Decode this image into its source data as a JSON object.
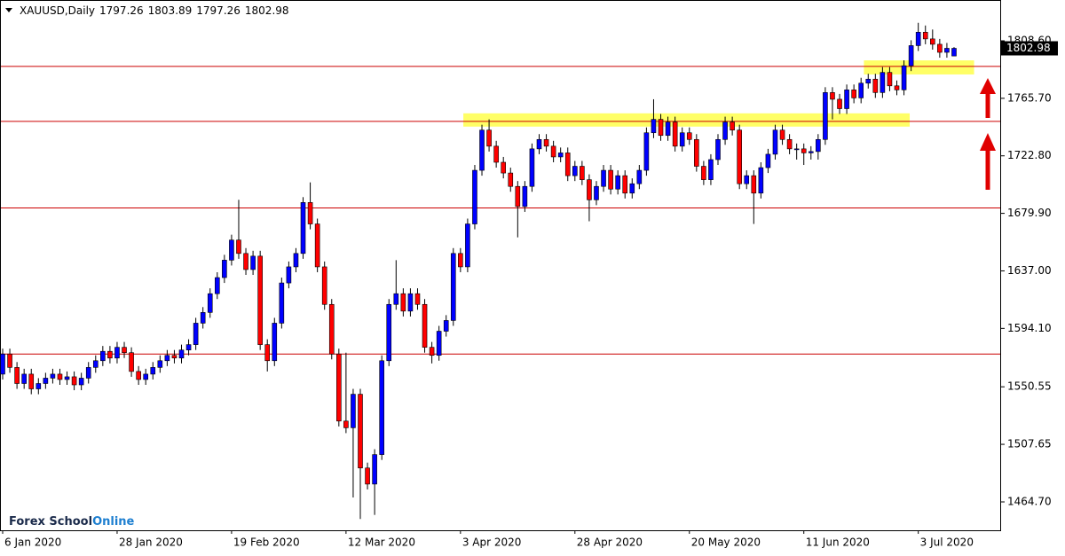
{
  "chart_data": {
    "type": "candlestick",
    "title": "XAUUSD,Daily",
    "categories": [
      "6 Jan 2020",
      null,
      null,
      null,
      null,
      null,
      null,
      null,
      null,
      null,
      null,
      null,
      null,
      null,
      null,
      null,
      "28 Jan 2020",
      null,
      null,
      null,
      null,
      null,
      null,
      null,
      null,
      null,
      null,
      null,
      null,
      null,
      null,
      null,
      "19 Feb 2020",
      null,
      null,
      null,
      null,
      null,
      null,
      null,
      null,
      null,
      null,
      null,
      null,
      null,
      null,
      null,
      "12 Mar 2020",
      null,
      null,
      null,
      null,
      null,
      null,
      null,
      null,
      null,
      null,
      null,
      null,
      null,
      null,
      null,
      "3 Apr 2020",
      null,
      null,
      null,
      null,
      null,
      null,
      null,
      null,
      null,
      null,
      null,
      null,
      null,
      null,
      null,
      "28 Apr 2020",
      null,
      null,
      null,
      null,
      null,
      null,
      null,
      null,
      null,
      null,
      null,
      null,
      null,
      null,
      null,
      "20 May 2020",
      null,
      null,
      null,
      null,
      null,
      null,
      null,
      null,
      null,
      null,
      null,
      null,
      null,
      null,
      null,
      "11 Jun 2020",
      null,
      null,
      null,
      null,
      null,
      null,
      null,
      null,
      null,
      null,
      null,
      null,
      null,
      null,
      null,
      "3 Jul 2020",
      null,
      null,
      null,
      null,
      null
    ],
    "open": [
      1560,
      1575,
      1565,
      1553,
      1560,
      1549,
      1553,
      1557,
      1560,
      1556,
      1558,
      1552,
      1557,
      1565,
      1570,
      1577,
      1572,
      1580,
      1576,
      1562,
      1556,
      1560,
      1565,
      1570,
      1574,
      1572,
      1578,
      1582,
      1598,
      1606,
      1620,
      1632,
      1645,
      1660,
      1650,
      1638,
      1648,
      1582,
      1570,
      1598,
      1628,
      1640,
      1650,
      1688,
      1672,
      1640,
      1612,
      1575,
      1525,
      1520,
      1545,
      1490,
      1478,
      1500,
      1570,
      1612,
      1620,
      1607,
      1620,
      1612,
      1580,
      1574,
      1592,
      1600,
      1650,
      1640,
      1672,
      1712,
      1742,
      1730,
      1718,
      1710,
      1700,
      1685,
      1700,
      1728,
      1735,
      1730,
      1722,
      1725,
      1708,
      1715,
      1705,
      1690,
      1700,
      1712,
      1698,
      1708,
      1695,
      1702,
      1712,
      1740,
      1750,
      1738,
      1748,
      1730,
      1740,
      1735,
      1715,
      1705,
      1720,
      1735,
      1748,
      1742,
      1702,
      1708,
      1695,
      1714,
      1724,
      1742,
      1735,
      1728,
      1728,
      1725,
      1726,
      1735,
      1770,
      1765,
      1758,
      1772,
      1766,
      1777,
      1780,
      1770,
      1785,
      1775,
      1772,
      1790,
      1805,
      1815,
      1810,
      1806,
      1800,
      1797.26
    ],
    "high": [
      1579,
      1579,
      1569,
      1564,
      1564,
      1557,
      1561,
      1564,
      1564,
      1562,
      1562,
      1561,
      1569,
      1574,
      1581,
      1581,
      1584,
      1584,
      1580,
      1566,
      1564,
      1569,
      1574,
      1578,
      1578,
      1582,
      1586,
      1602,
      1610,
      1624,
      1636,
      1649,
      1664,
      1690,
      1654,
      1652,
      1652,
      1586,
      1602,
      1632,
      1644,
      1654,
      1692,
      1703,
      1676,
      1644,
      1616,
      1579,
      1576,
      1549,
      1549,
      1494,
      1504,
      1574,
      1616,
      1645,
      1624,
      1624,
      1624,
      1616,
      1584,
      1596,
      1604,
      1654,
      1654,
      1676,
      1716,
      1746,
      1750,
      1734,
      1722,
      1714,
      1704,
      1704,
      1732,
      1739,
      1739,
      1734,
      1729,
      1729,
      1719,
      1719,
      1709,
      1704,
      1716,
      1716,
      1712,
      1712,
      1706,
      1716,
      1744,
      1765,
      1754,
      1752,
      1752,
      1744,
      1744,
      1739,
      1719,
      1724,
      1739,
      1752,
      1752,
      1746,
      1712,
      1712,
      1718,
      1728,
      1746,
      1746,
      1739,
      1732,
      1732,
      1730,
      1739,
      1774,
      1774,
      1769,
      1776,
      1776,
      1781,
      1784,
      1784,
      1789,
      1789,
      1779,
      1794,
      1809,
      1822,
      1820,
      1817,
      1810,
      1807,
      1803.89
    ],
    "low": [
      1556,
      1561,
      1549,
      1549,
      1545,
      1545,
      1549,
      1553,
      1552,
      1552,
      1548,
      1548,
      1553,
      1561,
      1566,
      1568,
      1568,
      1572,
      1558,
      1552,
      1552,
      1556,
      1561,
      1566,
      1568,
      1568,
      1574,
      1578,
      1594,
      1602,
      1616,
      1628,
      1641,
      1646,
      1634,
      1634,
      1578,
      1562,
      1566,
      1594,
      1624,
      1636,
      1646,
      1668,
      1636,
      1608,
      1571,
      1521,
      1516,
      1468,
      1452,
      1474,
      1455,
      1496,
      1566,
      1608,
      1603,
      1603,
      1608,
      1576,
      1568,
      1570,
      1588,
      1596,
      1636,
      1636,
      1668,
      1708,
      1726,
      1714,
      1706,
      1696,
      1662,
      1681,
      1696,
      1724,
      1726,
      1718,
      1718,
      1704,
      1704,
      1701,
      1674,
      1686,
      1696,
      1694,
      1694,
      1691,
      1691,
      1698,
      1708,
      1736,
      1734,
      1734,
      1726,
      1726,
      1731,
      1711,
      1701,
      1701,
      1716,
      1731,
      1738,
      1698,
      1698,
      1672,
      1691,
      1710,
      1720,
      1731,
      1724,
      1720,
      1716,
      1720,
      1720,
      1731,
      1750,
      1754,
      1754,
      1762,
      1762,
      1773,
      1766,
      1766,
      1771,
      1768,
      1768,
      1786,
      1801,
      1806,
      1802,
      1796,
      1796,
      1797.26
    ],
    "close": [
      1575,
      1565,
      1553,
      1560,
      1549,
      1553,
      1557,
      1560,
      1556,
      1558,
      1552,
      1557,
      1565,
      1570,
      1577,
      1572,
      1580,
      1576,
      1562,
      1556,
      1560,
      1565,
      1570,
      1574,
      1572,
      1578,
      1582,
      1598,
      1606,
      1620,
      1632,
      1645,
      1660,
      1650,
      1638,
      1648,
      1582,
      1570,
      1598,
      1628,
      1640,
      1650,
      1688,
      1672,
      1640,
      1612,
      1575,
      1525,
      1520,
      1545,
      1490,
      1478,
      1500,
      1570,
      1612,
      1620,
      1607,
      1620,
      1612,
      1580,
      1574,
      1592,
      1600,
      1650,
      1640,
      1672,
      1712,
      1742,
      1730,
      1718,
      1710,
      1700,
      1685,
      1700,
      1728,
      1735,
      1730,
      1722,
      1725,
      1708,
      1715,
      1705,
      1690,
      1700,
      1712,
      1698,
      1708,
      1695,
      1702,
      1712,
      1740,
      1750,
      1738,
      1748,
      1730,
      1740,
      1735,
      1715,
      1705,
      1720,
      1735,
      1748,
      1742,
      1702,
      1708,
      1695,
      1714,
      1724,
      1742,
      1735,
      1728,
      1728,
      1725,
      1726,
      1735,
      1770,
      1765,
      1758,
      1772,
      1766,
      1777,
      1780,
      1770,
      1785,
      1775,
      1772,
      1790,
      1805,
      1815,
      1810,
      1806,
      1800,
      1803,
      1802.98
    ],
    "up_color": "#0000ff",
    "down_color": "#ff0000",
    "ylim": [
      1443.54,
      1839.02
    ],
    "yticks": [
      {
        "value": 1464.7,
        "label": "1464.70"
      },
      1507.65,
      1550.55,
      {
        "value": 1594.1,
        "label": "1594.10"
      },
      {
        "value": 1637,
        "label": "1637.00"
      },
      {
        "value": 1679.9,
        "label": "1679.90"
      },
      {
        "value": 1722.8,
        "label": "1722.80"
      },
      {
        "value": 1765.7,
        "label": "1765.70"
      },
      {
        "value": 1808.6,
        "label": "1808.60"
      }
    ],
    "levels": [
      1789.5,
      1748.5,
      1683.9,
      1575
    ],
    "level_color": "#cc0000",
    "zones": [
      {
        "from": 64.4,
        "to": 126.8,
        "low": 1744.6,
        "high": 1754.5
      },
      {
        "from": 120.4,
        "to": 135.8,
        "low": 1783.5,
        "high": 1794
      }
    ],
    "zone_color": "#ffff66",
    "grid": false,
    "watermark": [
      "Forex School",
      "Online"
    ]
  }
}
